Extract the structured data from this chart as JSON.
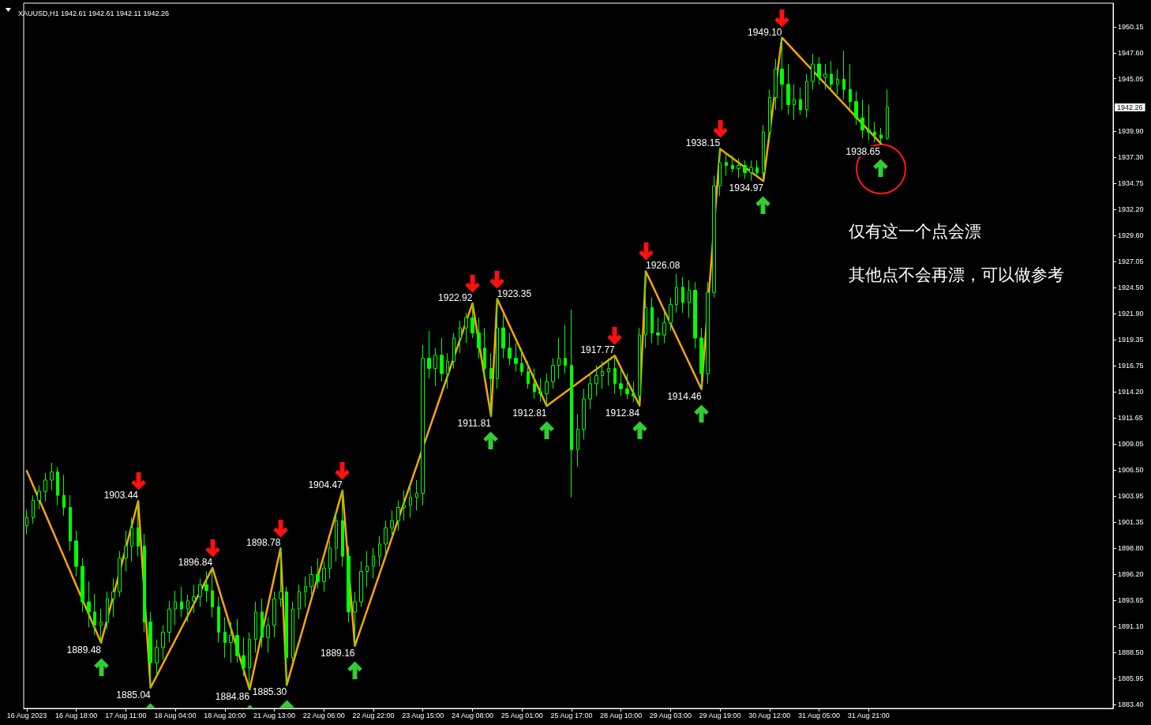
{
  "chart_data": {
    "type": "candlestick",
    "title": "XAUUSD,H1 1942.61 1942.61 1942.11 1942.26",
    "color": "#00ff00",
    "annotations": [
      "仅有这一个点会漂",
      "其他点不会再漂，可以做参考",
      "1942.26"
    ],
    "categories": [
      "16 Aug 2023",
      null,
      null,
      null,
      null,
      null,
      null,
      null,
      "16 Aug 18:00",
      null,
      null,
      null,
      null,
      null,
      null,
      null,
      "17 Aug 11:00",
      null,
      null,
      null,
      null,
      null,
      null,
      null,
      "18 Aug 04:00",
      null,
      null,
      null,
      null,
      null,
      null,
      null,
      "18 Aug 20:00",
      null,
      null,
      null,
      null,
      null,
      null,
      null,
      "21 Aug 13:00",
      null,
      null,
      null,
      null,
      null,
      null,
      null,
      "22 Aug 06:00",
      null,
      null,
      null,
      null,
      null,
      null,
      null,
      "22 Aug 22:00",
      null,
      null,
      null,
      null,
      null,
      null,
      null,
      "23 Aug 15:00",
      null,
      null,
      null,
      null,
      null,
      null,
      null,
      "24 Aug 08:00",
      null,
      null,
      null,
      null,
      null,
      null,
      null,
      "25 Aug 01:00",
      null,
      null,
      null,
      null,
      null,
      null,
      null,
      "25 Aug 17:00",
      null,
      null,
      null,
      null,
      null,
      null,
      null,
      "28 Aug 10:00",
      null,
      null,
      null,
      null,
      null,
      null,
      null,
      "29 Aug 03:00",
      null,
      null,
      null,
      null,
      null,
      null,
      null,
      "29 Aug 19:00",
      null,
      null,
      null,
      null,
      null,
      null,
      null,
      "30 Aug 12:00",
      null,
      null,
      null,
      null,
      null,
      null,
      null,
      "31 Aug 05:00",
      null,
      null,
      null,
      null,
      null,
      null,
      null,
      "31 Aug 21:00",
      null,
      null,
      null,
      null,
      null,
      null,
      null,
      null,
      null,
      null,
      null,
      null,
      null,
      null,
      null,
      null,
      null,
      null,
      null,
      null,
      null,
      null,
      null,
      null,
      null,
      null,
      null,
      null,
      null,
      null,
      null,
      null,
      null,
      null,
      null,
      null,
      null,
      null,
      null
    ],
    "ohlc": [
      [
        1901.0,
        1902.6,
        1900.2,
        1901.8
      ],
      [
        1901.8,
        1904.0,
        1901.2,
        1903.5
      ],
      [
        1903.5,
        1905.0,
        1902.6,
        1904.4
      ],
      [
        1904.4,
        1906.2,
        1903.4,
        1905.5
      ],
      [
        1905.5,
        1907.2,
        1904.5,
        1906.3
      ],
      [
        1906.3,
        1906.8,
        1903.0,
        1904.0
      ],
      [
        1904.0,
        1906.0,
        1902.0,
        1902.8
      ],
      [
        1902.8,
        1904.0,
        1898.5,
        1899.5
      ],
      [
        1899.5,
        1900.5,
        1896.0,
        1897.0
      ],
      [
        1897.0,
        1897.8,
        1892.5,
        1893.5
      ],
      [
        1893.5,
        1895.5,
        1891.0,
        1892.5
      ],
      [
        1892.5,
        1894.3,
        1890.2,
        1891.2
      ],
      [
        1891.2,
        1892.8,
        1889.48,
        1891.5
      ],
      [
        1891.5,
        1894.5,
        1890.8,
        1893.8
      ],
      [
        1893.8,
        1895.8,
        1892.0,
        1894.5
      ],
      [
        1894.5,
        1898.5,
        1894.0,
        1897.8
      ],
      [
        1897.8,
        1900.5,
        1896.5,
        1899.0
      ],
      [
        1899.0,
        1901.8,
        1897.5,
        1900.8
      ],
      [
        1900.8,
        1903.44,
        1898.0,
        1899.0
      ],
      [
        1899.0,
        1900.2,
        1890.5,
        1891.5
      ],
      [
        1891.5,
        1892.5,
        1885.04,
        1887.5
      ],
      [
        1887.5,
        1889.8,
        1886.2,
        1889.0
      ],
      [
        1889.0,
        1891.2,
        1887.8,
        1890.5
      ],
      [
        1890.5,
        1893.6,
        1889.5,
        1892.8
      ],
      [
        1892.8,
        1894.6,
        1891.2,
        1893.5
      ],
      [
        1893.5,
        1895.0,
        1892.0,
        1892.8
      ],
      [
        1892.8,
        1894.2,
        1891.5,
        1893.6
      ],
      [
        1893.6,
        1895.2,
        1892.4,
        1894.0
      ],
      [
        1894.0,
        1895.8,
        1893.0,
        1895.2
      ],
      [
        1895.2,
        1896.5,
        1893.5,
        1894.6
      ],
      [
        1894.6,
        1896.84,
        1892.0,
        1893.0
      ],
      [
        1893.0,
        1894.0,
        1889.5,
        1890.5
      ],
      [
        1890.5,
        1892.0,
        1888.0,
        1889.5
      ],
      [
        1889.5,
        1891.5,
        1887.5,
        1890.2
      ],
      [
        1890.2,
        1891.8,
        1887.5,
        1888.2
      ],
      [
        1888.2,
        1890.0,
        1886.2,
        1887.0
      ],
      [
        1887.0,
        1890.5,
        1884.86,
        1889.8
      ],
      [
        1889.8,
        1893.5,
        1888.5,
        1892.5
      ],
      [
        1892.5,
        1893.8,
        1889.0,
        1890.0
      ],
      [
        1890.0,
        1892.0,
        1888.5,
        1891.2
      ],
      [
        1891.2,
        1894.5,
        1890.0,
        1893.8
      ],
      [
        1893.8,
        1898.78,
        1893.0,
        1894.5
      ],
      [
        1894.5,
        1895.0,
        1885.3,
        1888.0
      ],
      [
        1888.0,
        1893.5,
        1887.5,
        1892.8
      ],
      [
        1892.8,
        1895.2,
        1891.8,
        1894.5
      ],
      [
        1894.5,
        1896.0,
        1893.0,
        1895.0
      ],
      [
        1895.0,
        1897.0,
        1894.2,
        1896.2
      ],
      [
        1896.2,
        1897.8,
        1894.8,
        1895.5
      ],
      [
        1895.5,
        1897.5,
        1894.5,
        1896.8
      ],
      [
        1896.8,
        1899.5,
        1895.8,
        1898.8
      ],
      [
        1898.8,
        1902.5,
        1897.5,
        1901.5
      ],
      [
        1901.5,
        1904.47,
        1897.0,
        1898.0
      ],
      [
        1898.0,
        1899.0,
        1891.5,
        1892.5
      ],
      [
        1892.5,
        1894.5,
        1889.16,
        1893.5
      ],
      [
        1893.5,
        1897.5,
        1893.0,
        1896.5
      ],
      [
        1896.5,
        1898.5,
        1895.0,
        1897.0
      ],
      [
        1897.0,
        1898.8,
        1895.8,
        1898.0
      ],
      [
        1898.0,
        1900.0,
        1897.0,
        1899.2
      ],
      [
        1899.2,
        1901.5,
        1898.0,
        1900.8
      ],
      [
        1900.8,
        1902.5,
        1899.8,
        1901.5
      ],
      [
        1901.5,
        1903.5,
        1900.5,
        1902.8
      ],
      [
        1902.8,
        1904.5,
        1901.5,
        1903.0
      ],
      [
        1903.0,
        1905.0,
        1901.8,
        1903.8
      ],
      [
        1903.8,
        1905.5,
        1902.5,
        1904.2
      ],
      [
        1904.2,
        1918.8,
        1903.0,
        1917.5
      ],
      [
        1917.5,
        1920.2,
        1915.5,
        1916.5
      ],
      [
        1916.5,
        1918.5,
        1914.8,
        1917.8
      ],
      [
        1917.8,
        1919.5,
        1915.2,
        1916.0
      ],
      [
        1916.0,
        1918.0,
        1914.5,
        1917.2
      ],
      [
        1917.2,
        1920.0,
        1916.5,
        1919.5
      ],
      [
        1919.5,
        1921.2,
        1918.0,
        1920.5
      ],
      [
        1920.5,
        1922.0,
        1919.0,
        1921.5
      ],
      [
        1921.5,
        1922.92,
        1919.5,
        1920.0
      ],
      [
        1920.0,
        1921.5,
        1917.5,
        1918.5
      ],
      [
        1918.5,
        1920.5,
        1915.5,
        1916.5
      ],
      [
        1916.5,
        1918.0,
        1911.81,
        1915.5
      ],
      [
        1915.5,
        1923.35,
        1914.5,
        1920.5
      ],
      [
        1920.5,
        1921.8,
        1917.5,
        1918.5
      ],
      [
        1918.5,
        1920.0,
        1916.8,
        1917.5
      ],
      [
        1917.5,
        1919.0,
        1916.2,
        1917.0
      ],
      [
        1917.0,
        1918.5,
        1915.8,
        1916.2
      ],
      [
        1916.2,
        1917.2,
        1914.5,
        1915.0
      ],
      [
        1915.0,
        1916.5,
        1913.5,
        1914.2
      ],
      [
        1914.2,
        1915.5,
        1913.2,
        1914.0
      ],
      [
        1914.0,
        1916.0,
        1912.81,
        1915.2
      ],
      [
        1915.2,
        1917.5,
        1914.5,
        1916.8
      ],
      [
        1916.8,
        1919.5,
        1915.5,
        1917.5
      ],
      [
        1917.5,
        1920.8,
        1916.0,
        1916.8
      ],
      [
        1916.8,
        1922.3,
        1903.8,
        1908.5
      ],
      [
        1908.5,
        1912.0,
        1906.8,
        1910.5
      ],
      [
        1910.5,
        1914.5,
        1909.5,
        1913.5
      ],
      [
        1913.5,
        1916.0,
        1912.5,
        1915.0
      ],
      [
        1915.0,
        1916.8,
        1913.8,
        1915.8
      ],
      [
        1915.8,
        1917.2,
        1914.5,
        1916.2
      ],
      [
        1916.2,
        1917.5,
        1914.8,
        1916.5
      ],
      [
        1916.5,
        1917.77,
        1914.0,
        1915.0
      ],
      [
        1915.0,
        1916.5,
        1913.8,
        1914.5
      ],
      [
        1914.5,
        1916.0,
        1913.5,
        1914.0
      ],
      [
        1914.0,
        1915.2,
        1913.2,
        1913.8
      ],
      [
        1913.8,
        1920.5,
        1912.84,
        1919.8
      ],
      [
        1919.8,
        1926.08,
        1918.5,
        1922.5
      ],
      [
        1922.5,
        1923.5,
        1919.0,
        1920.0
      ],
      [
        1920.0,
        1921.5,
        1918.8,
        1919.8
      ],
      [
        1919.8,
        1922.0,
        1919.0,
        1921.0
      ],
      [
        1921.0,
        1923.5,
        1920.2,
        1922.8
      ],
      [
        1922.8,
        1925.8,
        1922.0,
        1924.5
      ],
      [
        1924.5,
        1925.5,
        1922.0,
        1923.0
      ],
      [
        1923.0,
        1925.2,
        1921.5,
        1924.2
      ],
      [
        1924.2,
        1925.0,
        1918.5,
        1919.5
      ],
      [
        1919.5,
        1920.5,
        1914.46,
        1916.0
      ],
      [
        1916.0,
        1925.0,
        1915.0,
        1924.0
      ],
      [
        1924.0,
        1935.5,
        1923.5,
        1934.5
      ],
      [
        1934.5,
        1938.15,
        1933.5,
        1936.8
      ],
      [
        1936.8,
        1937.8,
        1935.5,
        1936.5
      ],
      [
        1936.5,
        1937.5,
        1935.8,
        1936.2
      ],
      [
        1936.2,
        1937.2,
        1935.3,
        1936.5
      ],
      [
        1936.5,
        1937.0,
        1935.2,
        1935.8
      ],
      [
        1935.8,
        1937.0,
        1935.0,
        1936.3
      ],
      [
        1936.3,
        1937.0,
        1935.4,
        1935.8
      ],
      [
        1935.8,
        1940.5,
        1934.97,
        1939.8
      ],
      [
        1939.8,
        1944.0,
        1938.8,
        1943.2
      ],
      [
        1943.2,
        1947.0,
        1942.0,
        1946.0
      ],
      [
        1946.0,
        1949.1,
        1942.0,
        1944.5
      ],
      [
        1944.5,
        1946.5,
        1941.5,
        1942.5
      ],
      [
        1942.5,
        1944.5,
        1941.0,
        1943.0
      ],
      [
        1943.0,
        1944.2,
        1941.5,
        1942.0
      ],
      [
        1942.0,
        1945.5,
        1941.2,
        1944.8
      ],
      [
        1944.8,
        1947.5,
        1944.0,
        1946.5
      ],
      [
        1946.5,
        1947.2,
        1944.5,
        1945.2
      ],
      [
        1945.2,
        1946.5,
        1944.0,
        1945.5
      ],
      [
        1945.5,
        1946.8,
        1943.8,
        1944.5
      ],
      [
        1944.5,
        1946.0,
        1943.5,
        1945.0
      ],
      [
        1945.0,
        1947.8,
        1943.0,
        1944.0
      ],
      [
        1944.0,
        1946.5,
        1942.0,
        1942.8
      ],
      [
        1942.8,
        1943.8,
        1940.5,
        1941.2
      ],
      [
        1941.2,
        1943.0,
        1939.2,
        1940.0
      ],
      [
        1940.0,
        1942.5,
        1939.0,
        1939.8
      ],
      [
        1939.8,
        1940.8,
        1938.8,
        1939.5
      ],
      [
        1939.5,
        1940.2,
        1938.65,
        1939.2
      ],
      [
        1939.2,
        1944.0,
        1939.0,
        1942.26
      ],
      null,
      null,
      null,
      null,
      null,
      null,
      null,
      null,
      null,
      null,
      null,
      null,
      null,
      null,
      null,
      null,
      null,
      null,
      null,
      null,
      null,
      null,
      null,
      null,
      null,
      null,
      null,
      null,
      null,
      null,
      null,
      null,
      null,
      null,
      null,
      null
    ],
    "series": [
      {
        "type": "line",
        "color": "#ffa500",
        "values": [
          1906.4,
          null,
          null,
          null,
          null,
          null,
          null,
          null,
          null,
          null,
          null,
          null,
          1889.48,
          null,
          null,
          null,
          null,
          null,
          1903.44,
          null,
          1885.04,
          null,
          null,
          null,
          null,
          null,
          null,
          null,
          null,
          null,
          1896.84,
          null,
          null,
          null,
          null,
          null,
          1884.86,
          null,
          null,
          null,
          null,
          1898.78,
          1885.3,
          null,
          null,
          null,
          null,
          null,
          null,
          null,
          null,
          1904.47,
          null,
          1889.16,
          null,
          null,
          null,
          null,
          null,
          null,
          null,
          null,
          null,
          null,
          null,
          null,
          null,
          null,
          null,
          null,
          null,
          null,
          1922.92,
          null,
          null,
          1911.81,
          1923.35,
          null,
          null,
          null,
          null,
          null,
          null,
          null,
          1912.81,
          null,
          null,
          null,
          null,
          null,
          null,
          null,
          null,
          null,
          null,
          1917.77,
          null,
          null,
          null,
          1912.84,
          1926.08,
          null,
          null,
          null,
          null,
          null,
          null,
          null,
          null,
          1914.46,
          null,
          null,
          1938.15,
          null,
          null,
          null,
          null,
          null,
          null,
          1934.97,
          null,
          null,
          1949.1,
          null,
          null,
          null,
          null,
          null,
          null,
          null,
          null,
          null,
          null,
          null,
          null,
          null,
          null,
          null,
          1938.65,
          null,
          null,
          null,
          null,
          null,
          null,
          null,
          null,
          null,
          null,
          null,
          null,
          null,
          null,
          null,
          null,
          null,
          null,
          null,
          null,
          null,
          null,
          null,
          null,
          null,
          null,
          null,
          null,
          null,
          null,
          null,
          null,
          null,
          null,
          null,
          null,
          null
        ],
        "value_labels": [
          null,
          null,
          null,
          null,
          null,
          null,
          null,
          null,
          null,
          null,
          null,
          null,
          "1889.48",
          null,
          null,
          null,
          null,
          null,
          "1903.44",
          null,
          "1885.04",
          null,
          null,
          null,
          null,
          null,
          null,
          null,
          null,
          null,
          "1896.84",
          null,
          null,
          null,
          null,
          null,
          "1884.86",
          null,
          null,
          null,
          null,
          "1898.78",
          "1885.30",
          null,
          null,
          null,
          null,
          null,
          null,
          null,
          null,
          "1904.47",
          null,
          "1889.16",
          null,
          null,
          null,
          null,
          null,
          null,
          null,
          null,
          null,
          null,
          null,
          null,
          null,
          null,
          null,
          null,
          null,
          null,
          "1922.92",
          null,
          null,
          "1911.81",
          "1923.35",
          null,
          null,
          null,
          null,
          null,
          null,
          null,
          "1912.81",
          null,
          null,
          null,
          null,
          null,
          null,
          null,
          null,
          null,
          null,
          "1917.77",
          null,
          null,
          null,
          "1912.84",
          "1926.08",
          null,
          null,
          null,
          null,
          null,
          null,
          null,
          null,
          "1914.46",
          null,
          null,
          "1938.15",
          null,
          null,
          null,
          null,
          null,
          null,
          "1934.97",
          null,
          null,
          "1949.10",
          null,
          null,
          null,
          null,
          null,
          null,
          null,
          null,
          null,
          null,
          null,
          null,
          null,
          null,
          null,
          "1938.65",
          null,
          null,
          null,
          null,
          null,
          null,
          null,
          null,
          null,
          null,
          null,
          null,
          null,
          null,
          null,
          null,
          null,
          null,
          null,
          null,
          null,
          null,
          null,
          null,
          null,
          null,
          null,
          null,
          null,
          null,
          null,
          null,
          null,
          null,
          null,
          null,
          null
        ]
      }
    ],
    "ylim": [
      1883.0,
      1952.5
    ],
    "yticks": [
      1950.15,
      {
        "value": 1947.6,
        "label": "1947.60"
      },
      1945.05,
      {
        "value": 1939.9,
        "label": "1939.90"
      },
      {
        "value": 1937.3,
        "label": "1937.30"
      },
      1934.75,
      {
        "value": 1932.2,
        "label": "1932.20"
      },
      {
        "value": 1929.6,
        "label": "1929.60"
      },
      1927.05,
      {
        "value": 1924.5,
        "label": "1924.50"
      },
      {
        "value": 1921.9,
        "label": "1921.90"
      },
      1919.35,
      1916.75,
      {
        "value": 1914.2,
        "label": "1914.20"
      },
      1911.65,
      1909.05,
      {
        "value": 1906.5,
        "label": "1906.50"
      },
      1903.95,
      1901.35,
      {
        "value": 1898.8,
        "label": "1898.80"
      },
      {
        "value": 1896.2,
        "label": "1896.20"
      },
      1893.65,
      {
        "value": 1891.1,
        "label": "1891.10"
      },
      {
        "value": 1888.5,
        "label": "1888.50"
      },
      1885.95,
      {
        "value": 1883.4,
        "label": "1883.40"
      }
    ]
  }
}
